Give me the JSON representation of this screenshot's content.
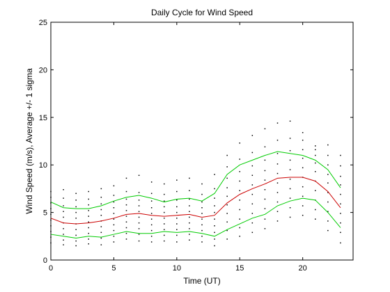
{
  "chart_data": {
    "type": "line",
    "title": "Daily Cycle for Wind Speed",
    "xlabel": "Time (UT)",
    "ylabel": "Wind Speed (m/s), Average +/- 1 sigma",
    "xlim": [
      0,
      24
    ],
    "ylim": [
      0,
      25
    ],
    "xticks": [
      0,
      5,
      10,
      15,
      20
    ],
    "yticks": [
      0,
      5,
      10,
      15,
      20,
      25
    ],
    "grid": false,
    "x": [
      0,
      1,
      2,
      3,
      4,
      5,
      6,
      7,
      8,
      9,
      10,
      11,
      12,
      13,
      14,
      15,
      16,
      17,
      18,
      19,
      20,
      21,
      22,
      23
    ],
    "series": [
      {
        "role": "average",
        "color": "#cc0000",
        "values": [
          4.4,
          3.9,
          3.8,
          3.9,
          4.1,
          4.4,
          4.8,
          4.9,
          4.7,
          4.6,
          4.7,
          4.8,
          4.5,
          4.7,
          6.0,
          6.9,
          7.5,
          8.0,
          8.6,
          8.7,
          8.7,
          8.3,
          7.2,
          5.5
        ]
      },
      {
        "role": "plus-1-sigma",
        "color": "#00cc00",
        "values": [
          6.1,
          5.5,
          5.4,
          5.4,
          5.7,
          6.2,
          6.6,
          6.8,
          6.5,
          6.1,
          6.4,
          6.5,
          6.2,
          7.0,
          9.0,
          10.0,
          10.5,
          11.0,
          11.4,
          11.2,
          11.0,
          10.5,
          9.5,
          7.6
        ]
      },
      {
        "role": "minus-1-sigma",
        "color": "#00cc00",
        "values": [
          2.7,
          2.5,
          2.3,
          2.5,
          2.4,
          2.7,
          3.0,
          2.8,
          2.8,
          3.0,
          2.9,
          3.0,
          2.8,
          2.5,
          3.2,
          3.8,
          4.4,
          4.8,
          5.7,
          6.2,
          6.5,
          6.3,
          5.0,
          3.4
        ]
      }
    ],
    "scatter": {
      "color": "#000000",
      "points": [
        [
          0,
          1.8
        ],
        [
          0,
          2.4
        ],
        [
          0,
          3.0
        ],
        [
          0,
          3.6
        ],
        [
          0,
          4.2
        ],
        [
          0,
          4.8
        ],
        [
          0,
          5.4
        ],
        [
          0,
          6.0
        ],
        [
          0,
          6.6
        ],
        [
          0,
          7.2
        ],
        [
          1,
          1.6
        ],
        [
          1,
          2.1
        ],
        [
          1,
          2.7
        ],
        [
          1,
          3.3
        ],
        [
          1,
          3.9
        ],
        [
          1,
          4.5
        ],
        [
          1,
          5.1
        ],
        [
          1,
          5.7
        ],
        [
          1,
          6.5
        ],
        [
          1,
          7.4
        ],
        [
          2,
          1.5
        ],
        [
          2,
          2.0
        ],
        [
          2,
          2.6
        ],
        [
          2,
          3.2
        ],
        [
          2,
          3.8
        ],
        [
          2,
          4.4
        ],
        [
          2,
          5.0
        ],
        [
          2,
          5.6
        ],
        [
          2,
          6.3
        ],
        [
          2,
          7.0
        ],
        [
          3,
          1.7
        ],
        [
          3,
          2.2
        ],
        [
          3,
          2.8
        ],
        [
          3,
          3.4
        ],
        [
          3,
          4.0
        ],
        [
          3,
          4.6
        ],
        [
          3,
          5.2
        ],
        [
          3,
          5.8
        ],
        [
          3,
          6.4
        ],
        [
          3,
          7.2
        ],
        [
          4,
          1.6
        ],
        [
          4,
          2.3
        ],
        [
          4,
          2.9
        ],
        [
          4,
          3.5
        ],
        [
          4,
          4.1
        ],
        [
          4,
          4.7
        ],
        [
          4,
          5.3
        ],
        [
          4,
          5.9
        ],
        [
          4,
          6.6
        ],
        [
          4,
          7.5
        ],
        [
          5,
          1.9
        ],
        [
          5,
          2.5
        ],
        [
          5,
          3.1
        ],
        [
          5,
          3.7
        ],
        [
          5,
          4.3
        ],
        [
          5,
          4.9
        ],
        [
          5,
          5.5
        ],
        [
          5,
          6.1
        ],
        [
          5,
          6.8
        ],
        [
          5,
          7.8
        ],
        [
          6,
          2.2
        ],
        [
          6,
          2.8
        ],
        [
          6,
          3.4
        ],
        [
          6,
          4.0
        ],
        [
          6,
          4.6
        ],
        [
          6,
          5.2
        ],
        [
          6,
          5.8
        ],
        [
          6,
          6.4
        ],
        [
          6,
          7.2
        ],
        [
          6,
          8.6
        ],
        [
          7,
          2.0
        ],
        [
          7,
          2.7
        ],
        [
          7,
          3.3
        ],
        [
          7,
          3.9
        ],
        [
          7,
          4.5
        ],
        [
          7,
          5.1
        ],
        [
          7,
          5.7
        ],
        [
          7,
          6.3
        ],
        [
          7,
          7.1
        ],
        [
          7,
          8.9
        ],
        [
          8,
          1.9
        ],
        [
          8,
          2.5
        ],
        [
          8,
          3.1
        ],
        [
          8,
          3.7
        ],
        [
          8,
          4.3
        ],
        [
          8,
          4.9
        ],
        [
          8,
          5.5
        ],
        [
          8,
          6.2
        ],
        [
          8,
          7.0
        ],
        [
          8,
          8.2
        ],
        [
          9,
          2.0
        ],
        [
          9,
          2.6
        ],
        [
          9,
          3.2
        ],
        [
          9,
          3.8
        ],
        [
          9,
          4.4
        ],
        [
          9,
          5.0
        ],
        [
          9,
          5.6
        ],
        [
          9,
          6.2
        ],
        [
          9,
          6.9
        ],
        [
          9,
          8.0
        ],
        [
          10,
          1.9
        ],
        [
          10,
          2.6
        ],
        [
          10,
          3.2
        ],
        [
          10,
          3.8
        ],
        [
          10,
          4.4
        ],
        [
          10,
          5.0
        ],
        [
          10,
          5.6
        ],
        [
          10,
          6.3
        ],
        [
          10,
          7.2
        ],
        [
          10,
          8.4
        ],
        [
          11,
          2.1
        ],
        [
          11,
          2.7
        ],
        [
          11,
          3.3
        ],
        [
          11,
          3.9
        ],
        [
          11,
          4.5
        ],
        [
          11,
          5.1
        ],
        [
          11,
          5.7
        ],
        [
          11,
          6.4
        ],
        [
          11,
          7.3
        ],
        [
          11,
          8.6
        ],
        [
          12,
          1.9
        ],
        [
          12,
          2.5
        ],
        [
          12,
          3.1
        ],
        [
          12,
          3.7
        ],
        [
          12,
          4.3
        ],
        [
          12,
          4.9
        ],
        [
          12,
          5.5
        ],
        [
          12,
          6.1
        ],
        [
          12,
          6.9
        ],
        [
          12,
          8.0
        ],
        [
          13,
          1.5
        ],
        [
          13,
          2.2
        ],
        [
          13,
          2.9
        ],
        [
          13,
          3.6
        ],
        [
          13,
          4.3
        ],
        [
          13,
          5.0
        ],
        [
          13,
          5.7
        ],
        [
          13,
          6.5
        ],
        [
          13,
          7.5
        ],
        [
          13,
          9.0
        ],
        [
          14,
          2.2
        ],
        [
          14,
          3.1
        ],
        [
          14,
          4.0
        ],
        [
          14,
          4.9
        ],
        [
          14,
          5.8
        ],
        [
          14,
          6.7
        ],
        [
          14,
          7.6
        ],
        [
          14,
          8.6
        ],
        [
          14,
          9.8
        ],
        [
          14,
          11.0
        ],
        [
          15,
          2.5
        ],
        [
          15,
          3.4
        ],
        [
          15,
          4.3
        ],
        [
          15,
          5.3
        ],
        [
          15,
          6.3
        ],
        [
          15,
          7.3
        ],
        [
          15,
          8.3
        ],
        [
          15,
          9.3
        ],
        [
          15,
          10.6
        ],
        [
          15,
          12.3
        ],
        [
          16,
          2.9
        ],
        [
          16,
          3.9
        ],
        [
          16,
          4.9
        ],
        [
          16,
          5.9
        ],
        [
          16,
          6.9
        ],
        [
          16,
          7.9
        ],
        [
          16,
          8.9
        ],
        [
          16,
          9.9
        ],
        [
          16,
          11.3
        ],
        [
          16,
          13.1
        ],
        [
          17,
          3.3
        ],
        [
          17,
          4.3
        ],
        [
          17,
          5.4
        ],
        [
          17,
          6.4
        ],
        [
          17,
          7.4
        ],
        [
          17,
          8.4
        ],
        [
          17,
          9.4
        ],
        [
          17,
          10.5
        ],
        [
          17,
          11.9
        ],
        [
          17,
          13.8
        ],
        [
          18,
          4.1
        ],
        [
          18,
          5.1
        ],
        [
          18,
          6.1
        ],
        [
          18,
          7.1
        ],
        [
          18,
          8.1
        ],
        [
          18,
          9.1
        ],
        [
          18,
          10.1
        ],
        [
          18,
          11.2
        ],
        [
          18,
          12.6
        ],
        [
          18,
          14.4
        ],
        [
          19,
          4.5
        ],
        [
          19,
          5.5
        ],
        [
          19,
          6.5
        ],
        [
          19,
          7.5
        ],
        [
          19,
          8.5
        ],
        [
          19,
          9.5
        ],
        [
          19,
          10.5
        ],
        [
          19,
          11.5
        ],
        [
          19,
          12.8
        ],
        [
          19,
          14.6
        ],
        [
          20,
          4.7
        ],
        [
          20,
          5.7
        ],
        [
          20,
          6.7
        ],
        [
          20,
          7.7
        ],
        [
          20,
          8.7
        ],
        [
          20,
          9.7
        ],
        [
          20,
          10.7
        ],
        [
          20,
          11.6
        ],
        [
          20,
          12.6
        ],
        [
          20,
          13.4
        ],
        [
          21,
          4.3
        ],
        [
          21,
          5.3
        ],
        [
          21,
          6.3
        ],
        [
          21,
          7.3
        ],
        [
          21,
          8.3
        ],
        [
          21,
          9.3
        ],
        [
          21,
          10.2
        ],
        [
          21,
          11.0
        ],
        [
          21,
          11.6
        ],
        [
          21,
          12.0
        ],
        [
          22,
          3.1
        ],
        [
          22,
          4.1
        ],
        [
          22,
          5.1
        ],
        [
          22,
          6.1
        ],
        [
          22,
          7.1
        ],
        [
          22,
          8.1
        ],
        [
          22,
          9.0
        ],
        [
          22,
          10.0
        ],
        [
          22,
          11.0
        ],
        [
          22,
          12.1
        ],
        [
          23,
          1.8
        ],
        [
          23,
          2.9
        ],
        [
          23,
          3.9
        ],
        [
          23,
          4.9
        ],
        [
          23,
          5.9
        ],
        [
          23,
          6.9
        ],
        [
          23,
          7.9
        ],
        [
          23,
          8.8
        ],
        [
          23,
          9.9
        ],
        [
          23,
          11.0
        ]
      ]
    }
  }
}
